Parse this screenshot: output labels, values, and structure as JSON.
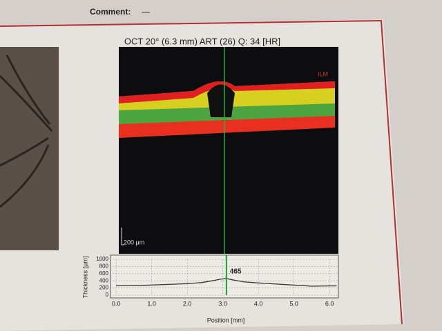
{
  "header": {
    "comment_label": "Comment:",
    "comment_value": "—",
    "oct_title": "OCT 20° (6.3 mm) ART (26) Q: 34 [HR]",
    "scale_label": "200 µm",
    "ilm_label": "ILM"
  },
  "chart_data": {
    "type": "line",
    "xlabel": "Position [mm]",
    "ylabel": "Thickness [µm]",
    "x": [
      0,
      0.4,
      0.8,
      1.2,
      1.6,
      2.0,
      2.4,
      2.7,
      2.9,
      3.1,
      3.3,
      3.6,
      4.0,
      4.5,
      5.0,
      5.5,
      5.8,
      6.2
    ],
    "series": [
      {
        "name": "Thickness",
        "color": "#333333",
        "values": [
          260,
          265,
          275,
          290,
          305,
          320,
          350,
          400,
          440,
          465,
          420,
          370,
          340,
          310,
          280,
          250,
          255,
          260
        ]
      }
    ],
    "marker": {
      "x": 3.1,
      "value": 465,
      "color": "#1a9a3a"
    },
    "xlim": [
      -0.1,
      6.25
    ],
    "ylim": [
      0,
      1000
    ],
    "xticks": [
      {
        "value": 0,
        "label": "0.0"
      },
      {
        "value": 1,
        "label": "1.0"
      },
      {
        "value": 2,
        "label": "2.0"
      },
      {
        "value": 3,
        "label": "3.0"
      },
      {
        "value": 4,
        "label": "4.0"
      },
      {
        "value": 5,
        "label": "5.0"
      },
      {
        "value": 6,
        "label": "6.0"
      }
    ],
    "yticks": [
      0,
      200,
      400,
      600,
      800,
      1000
    ],
    "grid": true
  }
}
